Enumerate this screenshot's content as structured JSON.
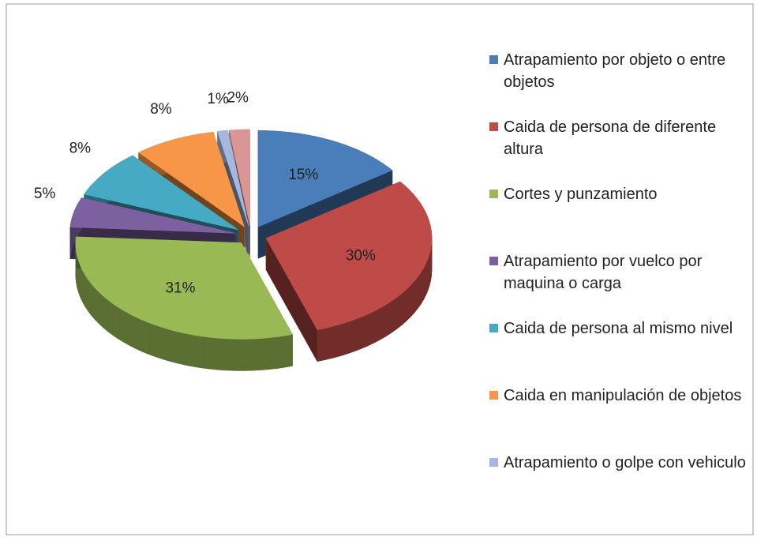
{
  "chart_data": {
    "type": "pie",
    "categories": [
      "Atrapamiento por objeto o entre objetos",
      "Caida de persona de diferente altura",
      "Cortes y punzamiento",
      "Atrapamiento por vuelco por maquina o carga",
      "Caida de persona al mismo nivel",
      "Caida en manipulación de objetos",
      "Atrapamiento o golpe con vehiculo",
      null
    ],
    "values": [
      15,
      30,
      31,
      5,
      8,
      8,
      1,
      2
    ],
    "value_labels": [
      "15%",
      "30%",
      "31%",
      "5%",
      "8%",
      "8%",
      "1%",
      "2%"
    ],
    "colors": [
      "#4a7ebb",
      "#be4b48",
      "#98b954",
      "#7d60a0",
      "#46aac5",
      "#f79646",
      "#a5b7dc",
      "#d99694"
    ],
    "legend": "right"
  }
}
